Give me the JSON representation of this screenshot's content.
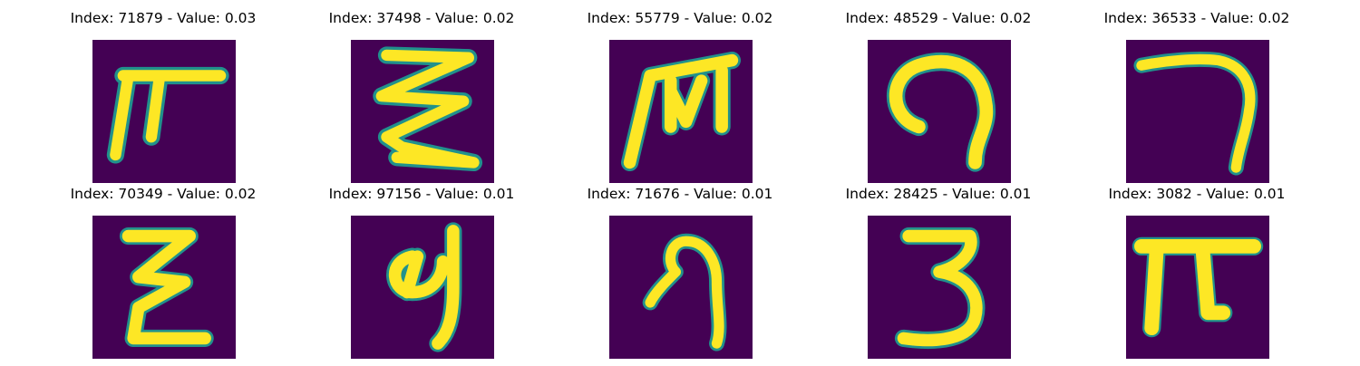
{
  "colors": {
    "background": "#440154",
    "foreground": "#fde725",
    "edge": "#21918c"
  },
  "panels": [
    {
      "title": "Index: 71879 - Value: 0.03",
      "glyph": "pi-like-glyph"
    },
    {
      "title": "Index: 37498 - Value: 0.02",
      "glyph": "zigzag-glyph"
    },
    {
      "title": "Index: 55779 - Value: 0.02",
      "glyph": "m-like-glyph"
    },
    {
      "title": "Index: 48529 - Value: 0.02",
      "glyph": "hook-glyph"
    },
    {
      "title": "Index: 36533 - Value: 0.02",
      "glyph": "seven-like-glyph"
    },
    {
      "title": "Index: 70349 - Value: 0.02",
      "glyph": "epsilon-like-glyph"
    },
    {
      "title": "Index: 97156 - Value: 0.01",
      "glyph": "nine-like-glyph"
    },
    {
      "title": "Index: 71676 - Value: 0.01",
      "glyph": "nine-glyph"
    },
    {
      "title": "Index: 28425 - Value: 0.01",
      "glyph": "three-glyph"
    },
    {
      "title": "Index: 3082 - Value: 0.01",
      "glyph": "pi-glyph"
    }
  ]
}
